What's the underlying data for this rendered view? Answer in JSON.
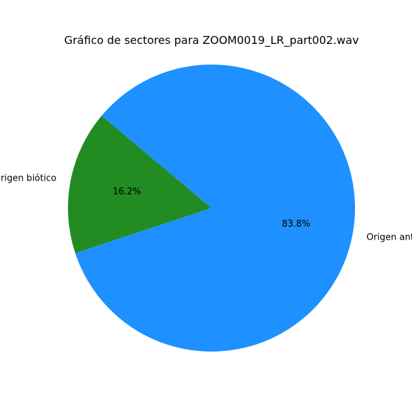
{
  "chart_data": {
    "type": "pie",
    "title": "Gráfico de sectores para ZOOM0019_LR_part002.wav",
    "start_angle_deg": 140,
    "direction": "counterclockwise",
    "legend": "none",
    "slices": [
      {
        "label": "Origen biótico",
        "value": 16.2,
        "display": "16.2%",
        "color": "#228b22"
      },
      {
        "label": "Origen antrópico",
        "value": 83.8,
        "display": "83.8%",
        "color": "#1e90ff"
      }
    ]
  }
}
